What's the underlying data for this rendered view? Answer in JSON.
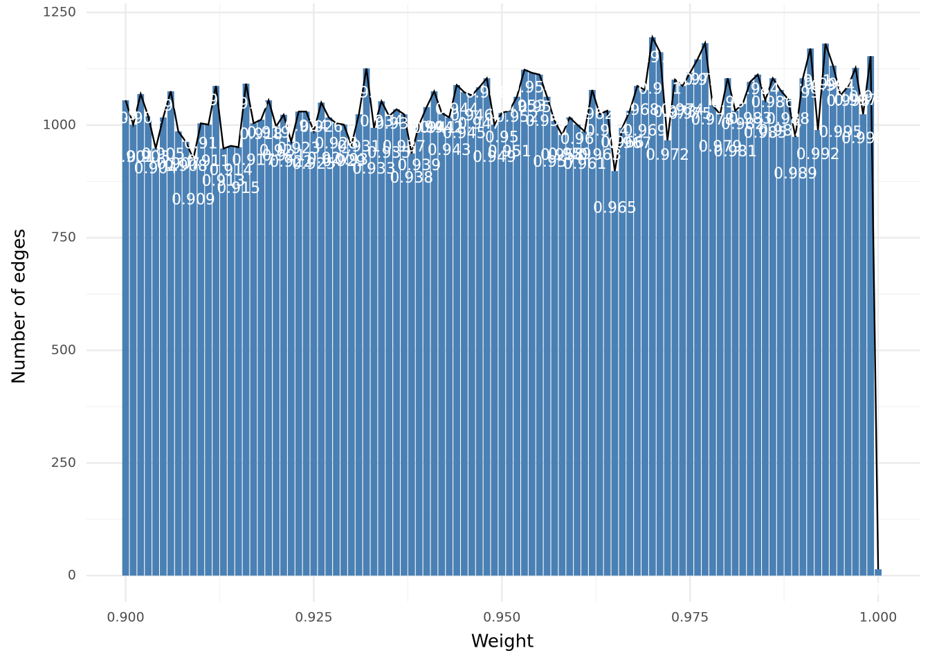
{
  "chart_data": {
    "type": "bar",
    "x_label": "Weight",
    "y_label": "Number of edges",
    "x": [
      0.9,
      0.901,
      0.902,
      0.903,
      0.904,
      0.905,
      0.906,
      0.907,
      0.908,
      0.909,
      0.91,
      0.911,
      0.912,
      0.913,
      0.914,
      0.915,
      0.916,
      0.917,
      0.918,
      0.919,
      0.92,
      0.921,
      0.922,
      0.923,
      0.924,
      0.925,
      0.926,
      0.927,
      0.928,
      0.929,
      0.93,
      0.931,
      0.932,
      0.933,
      0.934,
      0.935,
      0.936,
      0.937,
      0.938,
      0.939,
      0.94,
      0.941,
      0.942,
      0.943,
      0.944,
      0.945,
      0.946,
      0.947,
      0.948,
      0.949,
      0.95,
      0.951,
      0.952,
      0.953,
      0.954,
      0.955,
      0.956,
      0.957,
      0.958,
      0.959,
      0.96,
      0.961,
      0.962,
      0.963,
      0.964,
      0.965,
      0.966,
      0.967,
      0.968,
      0.969,
      0.97,
      0.971,
      0.972,
      0.973,
      0.974,
      0.975,
      0.976,
      0.977,
      0.978,
      0.979,
      0.98,
      0.981,
      0.982,
      0.983,
      0.984,
      0.985,
      0.986,
      0.987,
      0.988,
      0.989,
      0.99,
      0.991,
      0.992,
      0.993,
      0.994,
      0.995,
      0.996,
      0.997,
      0.998,
      0.999,
      1
    ],
    "labels": [
      "0.9",
      "0.901",
      "0.902",
      "0.903",
      "0.904",
      "0.905",
      "0.906",
      "0.907",
      "0.908",
      "0.909",
      "0.91",
      "0.911",
      "0.912",
      "0.913",
      "0.914",
      "0.915",
      "0.916",
      "0.917",
      "0.918",
      "0.919",
      "0.92",
      "0.921",
      "0.922",
      "0.923",
      "0.924",
      "0.925",
      "0.926",
      "0.927",
      "0.928",
      "0.929",
      "0.93",
      "0.931",
      "0.932",
      "0.933",
      "0.934",
      "0.935",
      "0.936",
      "0.937",
      "0.938",
      "0.939",
      "0.94",
      "0.941",
      "0.942",
      "0.943",
      "0.944",
      "0.945",
      "0.946",
      "0.947",
      "0.948",
      "0.949",
      "0.95",
      "0.951",
      "0.952",
      "0.953",
      "0.954",
      "0.955",
      "0.956",
      "0.957",
      "0.958",
      "0.959",
      "0.96",
      "0.961",
      "0.962",
      "0.963",
      "0.964",
      "0.965",
      "0.966",
      "0.967",
      "0.968",
      "0.969",
      "0.97",
      "0.971",
      "0.972",
      "0.973",
      "0.974",
      "0.975",
      "0.976",
      "0.977",
      "0.978",
      "0.979",
      "0.98",
      "0.981",
      "0.982",
      "0.983",
      "0.984",
      "0.985",
      "0.986",
      "0.987",
      "0.988",
      "0.989",
      "0.99",
      "0.991",
      "0.992",
      "0.993",
      "0.994",
      "0.995",
      "0.996",
      "0.997",
      "0.998",
      "0.999",
      "1"
    ],
    "values": [
      1055,
      1001,
      1069,
      1020,
      948,
      1017,
      1075,
      986,
      963,
      925,
      1004,
      1001,
      1087,
      948,
      954,
      951,
      1092,
      1004,
      1012,
      1055,
      997,
      1023,
      963,
      1030,
      1030,
      986,
      1050,
      1017,
      1004,
      1001,
      955,
      1024,
      1126,
      994,
      1053,
      1020,
      1035,
      1024,
      937,
      1001,
      1040,
      1075,
      1027,
      1017,
      1089,
      1073,
      1066,
      1084,
      1104,
      1001,
      1027,
      1032,
      1063,
      1123,
      1116,
      1112,
      1063,
      1009,
      978,
      1017,
      1001,
      986,
      1078,
      1024,
      1032,
      898,
      994,
      1032,
      1087,
      1078,
      1195,
      1162,
      966,
      1101,
      1087,
      1116,
      1146,
      1182,
      1044,
      1024,
      1104,
      1032,
      1047,
      1096,
      1112,
      1055,
      1104,
      1078,
      1058,
      974,
      1104,
      1170,
      989,
      1181,
      1132,
      1066,
      1086,
      1127,
      1024,
      1153,
      14
    ],
    "color": "#4a80b4",
    "line_color": "#000000",
    "xlim": [
      0.8948,
      1.0056
    ],
    "ylim": [
      -58,
      1270
    ],
    "xticks": [
      {
        "value": 0.9,
        "label": "0.900"
      },
      {
        "value": 0.925,
        "label": "0.925"
      },
      {
        "value": 0.95,
        "label": "0.950"
      },
      {
        "value": 0.975,
        "label": "0.975"
      },
      {
        "value": 1,
        "label": "1.000"
      }
    ],
    "yticks": [
      0,
      250,
      500,
      750,
      1000,
      1250
    ],
    "grid": true
  }
}
